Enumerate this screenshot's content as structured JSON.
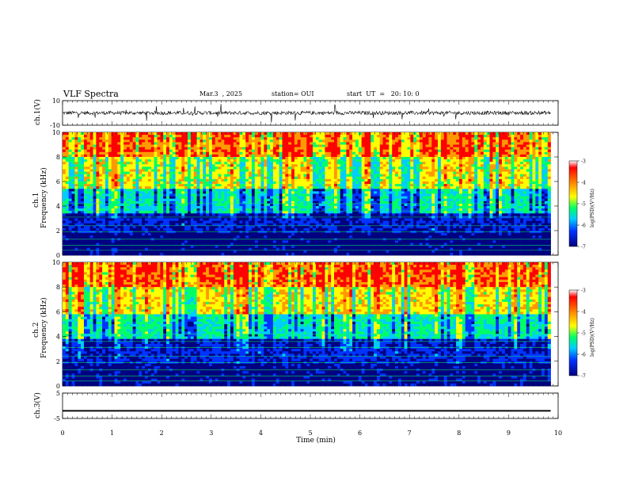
{
  "header": {
    "title": "VLF Spectra",
    "date": "Mar.3  , 2025",
    "station": "station= OUI",
    "start": "start  UT  =   20: 10: 0"
  },
  "colorbar": {
    "label": "log(PSD)(V²/Hz)",
    "ticks": [
      "-3",
      "-4",
      "-5",
      "-6",
      "-7"
    ],
    "colors": [
      "#ff0000",
      "#ff9900",
      "#ffff00",
      "#00ff66",
      "#00ccff",
      "#0033ff",
      "#000080"
    ]
  },
  "chart_data": [
    {
      "type": "line",
      "panel": "waveform-ch1",
      "ylabel": "ch.1(V)",
      "ylim": [
        -10,
        10
      ],
      "yticks": [
        "10",
        "-10"
      ],
      "xlim": [
        0,
        10
      ],
      "description_values": {
        "baseline_v": 0,
        "typical_amplitude_v": 1.5
      }
    },
    {
      "type": "heatmap",
      "panel": "spectrogram-ch1",
      "ylabel_top": "ch.1",
      "ylabel": "Frequency  (kHz)",
      "ylim": [
        0,
        10
      ],
      "yticks": [
        "0",
        "2",
        "4",
        "6",
        "8",
        "10"
      ],
      "xlim": [
        0,
        9.85
      ],
      "zlim": [
        -7,
        -3
      ],
      "frequency_bands_khz": [
        {
          "from": 0,
          "to": 1.8,
          "log_psd": -6.8
        },
        {
          "from": 1.8,
          "to": 3.5,
          "log_psd": -6.4
        },
        {
          "from": 3.5,
          "to": 5.5,
          "log_psd": -5.3
        },
        {
          "from": 5.5,
          "to": 8,
          "log_psd": -4.4
        },
        {
          "from": 8,
          "to": 10,
          "log_psd": -3.6
        }
      ]
    },
    {
      "type": "heatmap",
      "panel": "spectrogram-ch2",
      "ylabel_top": "ch.2",
      "ylabel": "Frequency  (kHz)",
      "ylim": [
        0,
        10
      ],
      "yticks": [
        "0",
        "2",
        "4",
        "6",
        "8",
        "10"
      ],
      "xlim": [
        0,
        9.85
      ],
      "zlim": [
        -7,
        -3
      ],
      "frequency_bands_khz": [
        {
          "from": 0,
          "to": 1.8,
          "log_psd": -6.7
        },
        {
          "from": 1.8,
          "to": 3.8,
          "log_psd": -6.3
        },
        {
          "from": 3.8,
          "to": 5.8,
          "log_psd": -5.2
        },
        {
          "from": 5.8,
          "to": 8,
          "log_psd": -4.3
        },
        {
          "from": 8,
          "to": 10,
          "log_psd": -3.5
        }
      ]
    },
    {
      "type": "line",
      "panel": "waveform-ch3",
      "ylabel": "ch.3(V)",
      "ylim": [
        -5,
        5
      ],
      "yticks": [
        "5",
        "-5"
      ],
      "xlim": [
        0,
        10
      ],
      "description_values": {
        "level_v": -2,
        "thickness_v": 0.6
      }
    }
  ],
  "xaxis": {
    "label": "Time  (min)",
    "ticks": [
      "0",
      "1",
      "2",
      "3",
      "4",
      "5",
      "6",
      "7",
      "8",
      "9",
      "10"
    ]
  }
}
